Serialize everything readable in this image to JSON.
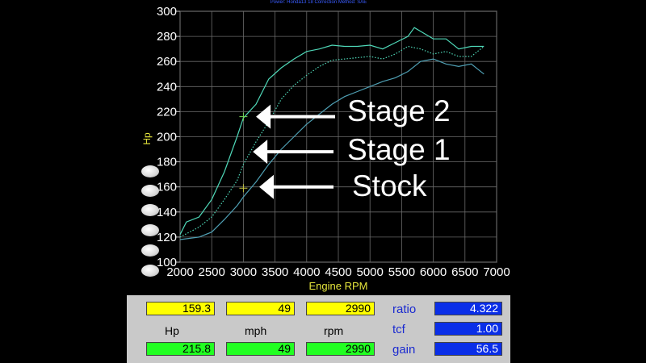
{
  "header": {
    "text": "Power: Honda13 18      Correction Method: SAE"
  },
  "chart_data": {
    "type": "line",
    "xlabel": "Engine RPM",
    "ylabel": "Hp",
    "xlim": [
      2000,
      7000
    ],
    "ylim": [
      100,
      300
    ],
    "x_ticks": [
      2000,
      2500,
      3000,
      3500,
      4000,
      4500,
      5000,
      5500,
      6000,
      6500,
      7000
    ],
    "y_ticks": [
      100,
      120,
      140,
      160,
      180,
      200,
      220,
      240,
      260,
      280,
      300
    ],
    "grid": true,
    "series": [
      {
        "name": "Stage 2",
        "color": "#4fd8b8",
        "style": "solid",
        "x": [
          2000,
          2100,
          2300,
          2500,
          2700,
          2900,
          3000,
          3200,
          3400,
          3600,
          3800,
          4000,
          4200,
          4400,
          4600,
          4800,
          5000,
          5200,
          5400,
          5600,
          5700,
          5800,
          6000,
          6200,
          6400,
          6600,
          6800
        ],
        "y": [
          122,
          132,
          136,
          150,
          172,
          200,
          215,
          226,
          246,
          255,
          262,
          268,
          270,
          273,
          272,
          272,
          273,
          270,
          275,
          280,
          287,
          284,
          278,
          278,
          270,
          272,
          272
        ]
      },
      {
        "name": "Stage 1",
        "color": "#4fd8b8",
        "style": "dotted",
        "x": [
          2000,
          2300,
          2500,
          2700,
          2900,
          3000,
          3200,
          3400,
          3600,
          3800,
          4000,
          4200,
          4400,
          4600,
          4800,
          5000,
          5200,
          5400,
          5600,
          5800,
          6000,
          6200,
          6400,
          6600,
          6800
        ],
        "y": [
          120,
          128,
          136,
          150,
          165,
          178,
          196,
          212,
          230,
          241,
          249,
          256,
          261,
          262,
          263,
          264,
          262,
          266,
          272,
          270,
          266,
          268,
          264,
          264,
          272
        ]
      },
      {
        "name": "Stock",
        "color": "#4fa0b4",
        "style": "solid",
        "x": [
          2000,
          2300,
          2500,
          2700,
          2900,
          3000,
          3200,
          3400,
          3600,
          3800,
          4000,
          4200,
          4400,
          4600,
          4800,
          5000,
          5200,
          5400,
          5600,
          5800,
          6000,
          6200,
          6400,
          6600,
          6800
        ],
        "y": [
          118,
          120,
          124,
          134,
          145,
          152,
          164,
          178,
          190,
          200,
          210,
          218,
          226,
          232,
          236,
          240,
          244,
          247,
          252,
          260,
          262,
          258,
          256,
          258,
          250
        ]
      }
    ],
    "markers": [
      {
        "x": 3000,
        "y": 216,
        "color": "#78d858"
      },
      {
        "x": 3000,
        "y": 159,
        "color": "#c8c844"
      }
    ],
    "annotations": [
      {
        "text": "Stage 2",
        "target_x": 3200,
        "target_y": 216
      },
      {
        "text": "Stage 1",
        "target_x": 3150,
        "target_y": 188
      },
      {
        "text": "Stock",
        "target_x": 3250,
        "target_y": 160
      }
    ]
  },
  "readout": {
    "top": {
      "hp": "159.3",
      "mph": "49",
      "rpm": "2990"
    },
    "labels": {
      "hp": "Hp",
      "mph": "mph",
      "rpm": "rpm"
    },
    "bottom": {
      "hp": "215.8",
      "mph": "49",
      "rpm": "2990"
    },
    "ratio_label": "ratio",
    "ratio_value": "4.322",
    "tcf_label": "tcf",
    "tcf_value": "1.00",
    "gain_label": "gain",
    "gain_value": "56.5"
  },
  "colors": {
    "axis_text": "#ffffff",
    "axis_label": "#e6e63c",
    "grid": "#6a6a6a",
    "annotation": "#ffffff"
  }
}
